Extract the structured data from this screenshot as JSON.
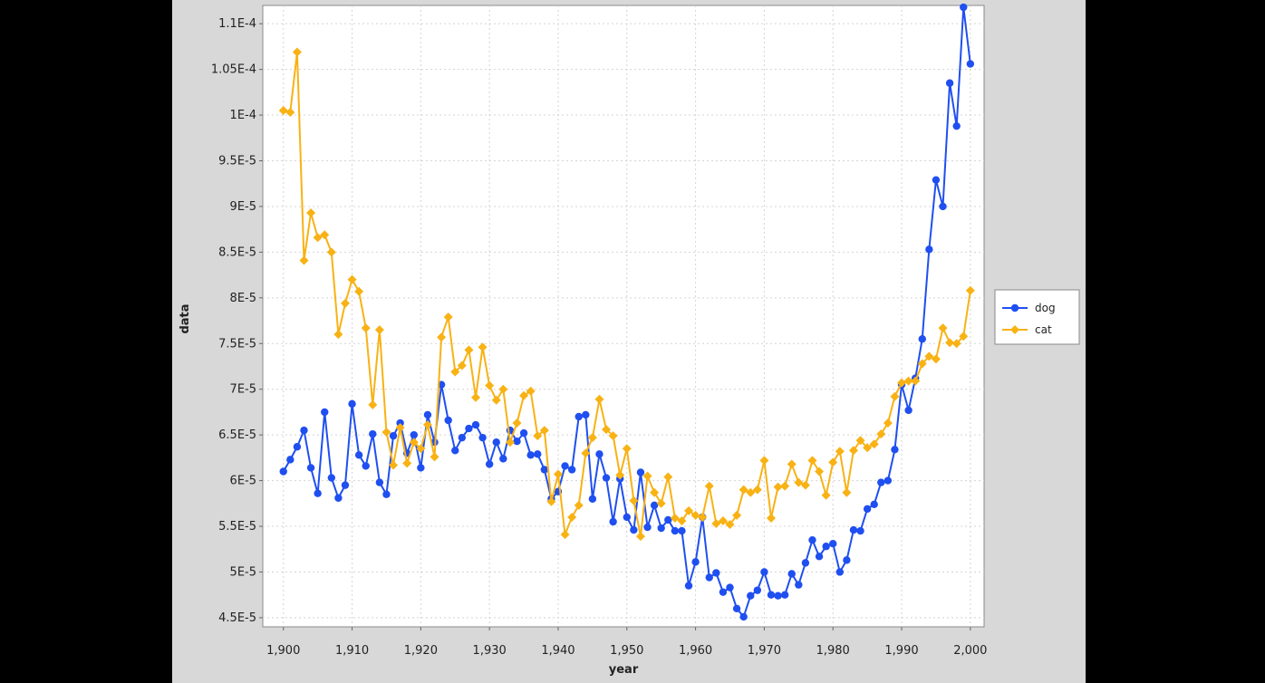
{
  "chart_data": {
    "type": "line",
    "title": "",
    "xlabel": "year",
    "ylabel": "data",
    "xlim": [
      1897,
      2002
    ],
    "ylim": [
      4.4e-05,
      0.000112
    ],
    "grid": true,
    "legend_position": "right",
    "x_ticks": [
      {
        "value": 1900,
        "label": "1,900"
      },
      {
        "value": 1910,
        "label": "1,910"
      },
      {
        "value": 1920,
        "label": "1,920"
      },
      {
        "value": 1930,
        "label": "1,930"
      },
      {
        "value": 1940,
        "label": "1,940"
      },
      {
        "value": 1950,
        "label": "1,950"
      },
      {
        "value": 1960,
        "label": "1,960"
      },
      {
        "value": 1970,
        "label": "1,970"
      },
      {
        "value": 1980,
        "label": "1,980"
      },
      {
        "value": 1990,
        "label": "1,990"
      },
      {
        "value": 2000,
        "label": "2,000"
      }
    ],
    "y_ticks": [
      {
        "value": 4.5e-05,
        "label": "4.5E-5"
      },
      {
        "value": 5e-05,
        "label": "5E-5"
      },
      {
        "value": 5.5e-05,
        "label": "5.5E-5"
      },
      {
        "value": 6e-05,
        "label": "6E-5"
      },
      {
        "value": 6.5e-05,
        "label": "6.5E-5"
      },
      {
        "value": 7e-05,
        "label": "7E-5"
      },
      {
        "value": 7.5e-05,
        "label": "7.5E-5"
      },
      {
        "value": 8e-05,
        "label": "8E-5"
      },
      {
        "value": 8.5e-05,
        "label": "8.5E-5"
      },
      {
        "value": 9e-05,
        "label": "9E-5"
      },
      {
        "value": 9.5e-05,
        "label": "9.5E-5"
      },
      {
        "value": 0.0001,
        "label": "1E-4"
      },
      {
        "value": 0.000105,
        "label": "1.05E-4"
      },
      {
        "value": 0.00011,
        "label": "1.1E-4"
      }
    ],
    "x_start": 1900,
    "series": [
      {
        "name": "dog",
        "color": "#1f4ff0",
        "marker": "circle",
        "values": [
          6.1e-05,
          6.23e-05,
          6.37e-05,
          6.55e-05,
          6.14e-05,
          5.86e-05,
          6.75e-05,
          6.03e-05,
          5.81e-05,
          5.95e-05,
          6.84e-05,
          6.28e-05,
          6.16e-05,
          6.51e-05,
          5.98e-05,
          5.85e-05,
          6.49e-05,
          6.63e-05,
          6.3e-05,
          6.5e-05,
          6.14e-05,
          6.72e-05,
          6.42e-05,
          7.05e-05,
          6.66e-05,
          6.33e-05,
          6.47e-05,
          6.57e-05,
          6.61e-05,
          6.47e-05,
          6.18e-05,
          6.42e-05,
          6.24e-05,
          6.55e-05,
          6.43e-05,
          6.52e-05,
          6.28e-05,
          6.29e-05,
          6.12e-05,
          5.8e-05,
          5.88e-05,
          6.16e-05,
          6.12e-05,
          6.7e-05,
          6.72e-05,
          5.8e-05,
          6.29e-05,
          6.03e-05,
          5.55e-05,
          6.02e-05,
          5.6e-05,
          5.46e-05,
          6.09e-05,
          5.49e-05,
          5.73e-05,
          5.48e-05,
          5.57e-05,
          5.45e-05,
          5.45e-05,
          4.85e-05,
          5.11e-05,
          5.6e-05,
          4.94e-05,
          4.99e-05,
          4.78e-05,
          4.83e-05,
          4.6e-05,
          4.51e-05,
          4.74e-05,
          4.8e-05,
          5e-05,
          4.75e-05,
          4.74e-05,
          4.75e-05,
          4.98e-05,
          4.86e-05,
          5.1e-05,
          5.35e-05,
          5.17e-05,
          5.28e-05,
          5.31e-05,
          5e-05,
          5.13e-05,
          5.46e-05,
          5.45e-05,
          5.69e-05,
          5.74e-05,
          5.98e-05,
          6e-05,
          6.34e-05,
          7.05e-05,
          6.77e-05,
          7.12e-05,
          7.55e-05,
          8.53e-05,
          9.29e-05,
          9e-05,
          0.0001035,
          9.88e-05,
          0.0001118,
          0.0001056
        ]
      },
      {
        "name": "cat",
        "color": "#f8b214",
        "marker": "diamond",
        "values": [
          0.0001005,
          0.0001003,
          0.0001069,
          8.41e-05,
          8.93e-05,
          8.66e-05,
          8.69e-05,
          8.5e-05,
          7.6e-05,
          7.94e-05,
          8.2e-05,
          8.07e-05,
          7.67e-05,
          6.83e-05,
          7.65e-05,
          6.53e-05,
          6.17e-05,
          6.58e-05,
          6.19e-05,
          6.42e-05,
          6.35e-05,
          6.61e-05,
          6.26e-05,
          7.57e-05,
          7.79e-05,
          7.19e-05,
          7.26e-05,
          7.43e-05,
          6.91e-05,
          7.46e-05,
          7.04e-05,
          6.88e-05,
          7e-05,
          6.42e-05,
          6.63e-05,
          6.93e-05,
          6.98e-05,
          6.49e-05,
          6.55e-05,
          5.77e-05,
          6.07e-05,
          5.41e-05,
          5.6e-05,
          5.73e-05,
          6.3e-05,
          6.47e-05,
          6.89e-05,
          6.56e-05,
          6.49e-05,
          6.06e-05,
          6.35e-05,
          5.78e-05,
          5.39e-05,
          6.05e-05,
          5.87e-05,
          5.75e-05,
          6.04e-05,
          5.59e-05,
          5.56e-05,
          5.67e-05,
          5.62e-05,
          5.6e-05,
          5.94e-05,
          5.53e-05,
          5.56e-05,
          5.52e-05,
          5.62e-05,
          5.9e-05,
          5.87e-05,
          5.9e-05,
          6.22e-05,
          5.59e-05,
          5.93e-05,
          5.94e-05,
          6.18e-05,
          5.98e-05,
          5.95e-05,
          6.22e-05,
          6.1e-05,
          5.84e-05,
          6.2e-05,
          6.32e-05,
          5.87e-05,
          6.33e-05,
          6.44e-05,
          6.36e-05,
          6.4e-05,
          6.51e-05,
          6.63e-05,
          6.92e-05,
          7.07e-05,
          7.09e-05,
          7.09e-05,
          7.28e-05,
          7.36e-05,
          7.33e-05,
          7.67e-05,
          7.51e-05,
          7.5e-05,
          7.58e-05,
          8.08e-05
        ]
      }
    ]
  }
}
